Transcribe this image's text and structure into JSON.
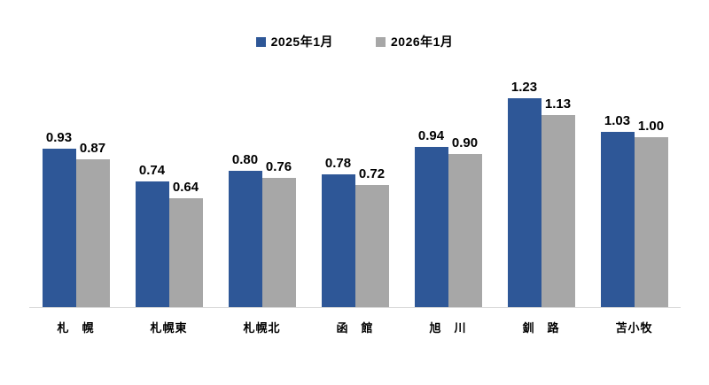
{
  "chart_data": {
    "type": "bar",
    "title": "",
    "xlabel": "",
    "ylabel": "",
    "categories": [
      "札　幌",
      "札幌東",
      "札幌北",
      "函　館",
      "旭　川",
      "釧　路",
      "苫小牧"
    ],
    "series": [
      {
        "name": "2025年1月",
        "color": "#2e5797",
        "values": [
          0.93,
          0.74,
          0.8,
          0.78,
          0.94,
          1.23,
          1.03
        ]
      },
      {
        "name": "2026年1月",
        "color": "#a7a7a7",
        "values": [
          0.87,
          0.64,
          0.76,
          0.72,
          0.9,
          1.13,
          1.0
        ]
      }
    ],
    "value_labels": true,
    "value_label_format": "0.00",
    "ylim": [
      0,
      1.4
    ],
    "grid": false,
    "y_axis_visible": false,
    "legend_position": "top",
    "axis_line_color": "#d9d9d9",
    "label_color": "#000000"
  }
}
